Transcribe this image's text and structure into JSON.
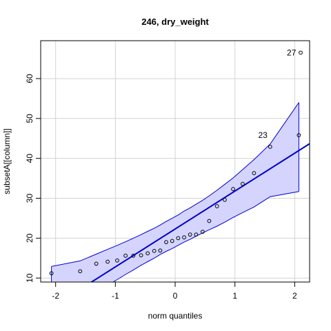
{
  "chart_data": {
    "type": "scatter",
    "title": "246, dry_weight",
    "xlabel": "norm quantiles",
    "ylabel": "subsetA[[column]]",
    "xlim": [
      -2.25,
      2.25
    ],
    "ylim": [
      9.0,
      69.5
    ],
    "xticks": [
      -2,
      -1,
      0,
      1,
      2
    ],
    "yticks": [
      10,
      20,
      30,
      40,
      50,
      60
    ],
    "grid": true,
    "colors": {
      "points": "#000000",
      "line": "#0000cc",
      "band_fill": "#d4d4ff",
      "band_edge": "#0000cc",
      "grid": "#d3d3d3"
    },
    "points": [
      {
        "x": -2.07,
        "y": 11.2
      },
      {
        "x": -1.59,
        "y": 11.7
      },
      {
        "x": -1.32,
        "y": 13.6
      },
      {
        "x": -1.13,
        "y": 14.1
      },
      {
        "x": -0.97,
        "y": 14.4
      },
      {
        "x": -0.83,
        "y": 15.6
      },
      {
        "x": -0.7,
        "y": 15.6
      },
      {
        "x": -0.57,
        "y": 15.7
      },
      {
        "x": -0.46,
        "y": 16.2
      },
      {
        "x": -0.35,
        "y": 16.8
      },
      {
        "x": -0.25,
        "y": 16.9
      },
      {
        "x": -0.15,
        "y": 19.0
      },
      {
        "x": -0.05,
        "y": 19.3
      },
      {
        "x": 0.05,
        "y": 20.0
      },
      {
        "x": 0.15,
        "y": 20.2
      },
      {
        "x": 0.25,
        "y": 20.9
      },
      {
        "x": 0.35,
        "y": 20.9
      },
      {
        "x": 0.46,
        "y": 21.6
      },
      {
        "x": 0.57,
        "y": 24.3
      },
      {
        "x": 0.7,
        "y": 28.0
      },
      {
        "x": 0.83,
        "y": 29.6
      },
      {
        "x": 0.97,
        "y": 32.3
      },
      {
        "x": 1.13,
        "y": 33.6
      },
      {
        "x": 1.32,
        "y": 36.3
      },
      {
        "x": 1.59,
        "y": 42.9
      },
      {
        "x": 2.07,
        "y": 45.8
      },
      {
        "x": 2.1,
        "y": 66.5
      }
    ],
    "point_labels": [
      {
        "label": "23",
        "x": 1.59,
        "y": 45.8
      },
      {
        "label": "27",
        "x": 2.07,
        "y": 66.5
      }
    ],
    "reference_line": {
      "intercept": 22.3,
      "slope": 9.5
    },
    "confidence_band": {
      "x": [
        -2.07,
        -1.59,
        -1.32,
        -1.13,
        -0.97,
        -0.83,
        -0.7,
        -0.57,
        -0.46,
        -0.35,
        -0.25,
        -0.15,
        -0.05,
        0.05,
        0.15,
        0.25,
        0.35,
        0.46,
        0.57,
        0.7,
        0.83,
        0.97,
        1.13,
        1.32,
        1.59,
        2.07
      ],
      "upper": [
        12.9,
        14.3,
        16.0,
        17.2,
        18.2,
        19.1,
        20.0,
        20.9,
        21.7,
        22.5,
        23.3,
        24.2,
        25.0,
        25.8,
        26.8,
        27.6,
        28.5,
        29.5,
        30.6,
        32.0,
        33.5,
        35.1,
        37.2,
        39.7,
        43.6,
        54.0
      ],
      "lower": [
        1.0,
        4.5,
        6.5,
        8.2,
        9.6,
        10.9,
        12.0,
        13.2,
        14.1,
        15.0,
        15.9,
        16.7,
        17.4,
        18.2,
        19.0,
        19.7,
        20.5,
        21.3,
        22.1,
        23.0,
        24.0,
        25.2,
        26.4,
        27.8,
        30.4,
        31.7
      ]
    }
  }
}
